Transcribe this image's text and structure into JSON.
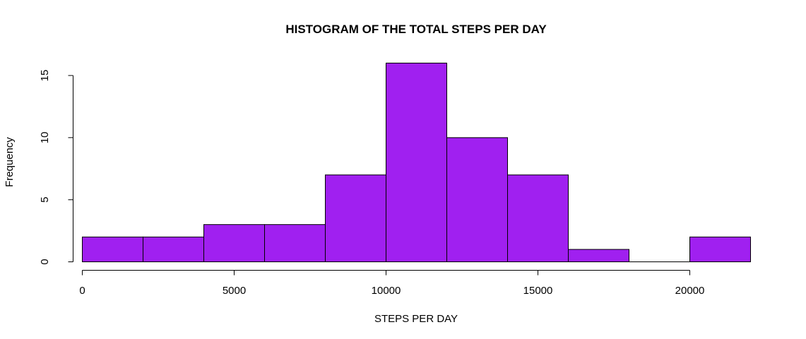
{
  "chart_data": {
    "type": "bar",
    "title": "HISTOGRAM OF THE TOTAL STEPS PER DAY",
    "xlabel": "STEPS PER DAY",
    "ylabel": "Frequency",
    "bins": [
      {
        "from": 0,
        "to": 2000,
        "count": 2
      },
      {
        "from": 2000,
        "to": 4000,
        "count": 2
      },
      {
        "from": 4000,
        "to": 6000,
        "count": 3
      },
      {
        "from": 6000,
        "to": 8000,
        "count": 3
      },
      {
        "from": 8000,
        "to": 10000,
        "count": 7
      },
      {
        "from": 10000,
        "to": 12000,
        "count": 16
      },
      {
        "from": 12000,
        "to": 14000,
        "count": 10
      },
      {
        "from": 14000,
        "to": 16000,
        "count": 7
      },
      {
        "from": 16000,
        "to": 18000,
        "count": 1
      },
      {
        "from": 18000,
        "to": 20000,
        "count": 0
      },
      {
        "from": 20000,
        "to": 22000,
        "count": 2
      }
    ],
    "xlim": [
      0,
      22000
    ],
    "ylim": [
      0,
      16
    ],
    "x_ticks": [
      0,
      5000,
      10000,
      15000,
      20000
    ],
    "x_tick_labels": [
      "0",
      "5000",
      "10000",
      "15000",
      "20000"
    ],
    "y_ticks": [
      0,
      5,
      10,
      15
    ],
    "y_tick_labels": [
      "0",
      "5",
      "10",
      "15"
    ],
    "grid": false,
    "bar_color": "#a020f0"
  }
}
